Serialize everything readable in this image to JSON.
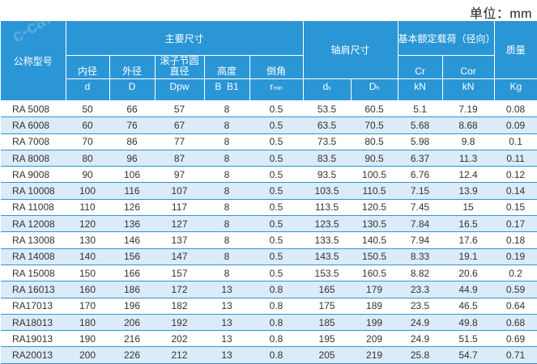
{
  "unit_label": "单位：mm",
  "watermark": "c-cafrica.cn",
  "header": {
    "model": "公称型号",
    "main_dims": "主要尺寸",
    "shoulder_dims": "轴肩尺寸",
    "load_ratings": "基本额定载荷（径向）",
    "mass": "质量",
    "inner_dia": "内径",
    "outer_dia": "外径",
    "roller_pcd": "滚子节圆直径",
    "height": "高度",
    "chamfer": "倒角",
    "sym_d": "d",
    "sym_D": "D",
    "sym_Dpw": "Dpw",
    "sym_B": "B  B1",
    "sym_r": "r",
    "sym_r_sub": "min",
    "sym_ds": "d",
    "sym_ds_sub": "s",
    "sym_Dh": "D",
    "sym_Dh_sub": "h",
    "sym_Cr": "Cr",
    "sym_Cor": "Cor",
    "unit_kN_1": "kN",
    "unit_kN_2": "kN",
    "unit_kg": "Kg"
  },
  "rows": [
    [
      "RA 5008",
      "50",
      "66",
      "57",
      "8",
      "0.5",
      "53.5",
      "60.5",
      "5.1",
      "7.19",
      "0.08"
    ],
    [
      "RA 6008",
      "60",
      "76",
      "67",
      "8",
      "0.5",
      "63.5",
      "70.5",
      "5.68",
      "8.68",
      "0.09"
    ],
    [
      "RA 7008",
      "70",
      "86",
      "77",
      "8",
      "0.5",
      "73.5",
      "80.5",
      "5.98",
      "9.8",
      "0.1"
    ],
    [
      "RA 8008",
      "80",
      "96",
      "87",
      "8",
      "0.5",
      "83.5",
      "90.5",
      "6.37",
      "11.3",
      "0.11"
    ],
    [
      "RA 9008",
      "90",
      "106",
      "97",
      "8",
      "0.5",
      "93.5",
      "100.5",
      "6.76",
      "12.4",
      "0.12"
    ],
    [
      "RA 10008",
      "100",
      "116",
      "107",
      "8",
      "0.5",
      "103.5",
      "110.5",
      "7.15",
      "13.9",
      "0.14"
    ],
    [
      "RA 11008",
      "110",
      "126",
      "117",
      "8",
      "0.5",
      "113.5",
      "120.5",
      "7.45",
      "15",
      "0.15"
    ],
    [
      "RA 12008",
      "120",
      "136",
      "127",
      "8",
      "0.5",
      "123.5",
      "130.5",
      "7.84",
      "16.5",
      "0.17"
    ],
    [
      "RA 13008",
      "130",
      "146",
      "137",
      "8",
      "0.5",
      "133.5",
      "140.5",
      "7.94",
      "17.6",
      "0.18"
    ],
    [
      "RA 14008",
      "140",
      "156",
      "147",
      "8",
      "0.5",
      "143.5",
      "150.5",
      "8.33",
      "19.1",
      "0.19"
    ],
    [
      "RA 15008",
      "150",
      "166",
      "157",
      "8",
      "0.5",
      "153.5",
      "160.5",
      "8.82",
      "20.6",
      "0.2"
    ],
    [
      "RA 16013",
      "160",
      "186",
      "172",
      "13",
      "0.8",
      "165",
      "179",
      "23.3",
      "44.9",
      "0.59"
    ],
    [
      "RA17013",
      "170",
      "196",
      "182",
      "13",
      "0.8",
      "175",
      "189",
      "23.5",
      "46.5",
      "0.64"
    ],
    [
      "RA18013",
      "180",
      "206",
      "192",
      "13",
      "0.8",
      "185",
      "199",
      "24.9",
      "49.8",
      "0.68"
    ],
    [
      "RA19013",
      "190",
      "216",
      "202",
      "13",
      "0.8",
      "195",
      "209",
      "24.9",
      "51.5",
      "0.69"
    ],
    [
      "RA20013",
      "200",
      "226",
      "212",
      "13",
      "0.8",
      "205",
      "219",
      "25.8",
      "54.7",
      "0.71"
    ]
  ]
}
